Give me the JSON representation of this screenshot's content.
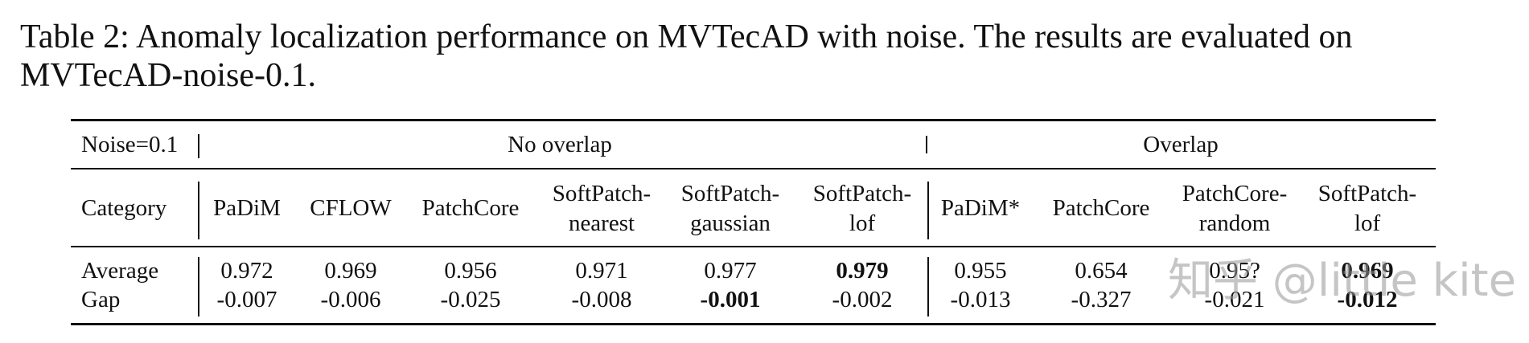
{
  "caption": {
    "line1": "Table 2: Anomaly localization performance on MVTecAD with noise. The results are evaluated on",
    "line2": "MVTecAD-noise-0.1."
  },
  "table": {
    "noise_label": "Noise=0.1",
    "group_no_overlap": "No overlap",
    "group_overlap": "Overlap",
    "category_label": "Category",
    "columns": [
      {
        "line1": "PaDiM",
        "line2": ""
      },
      {
        "line1": "CFLOW",
        "line2": ""
      },
      {
        "line1": "PatchCore",
        "line2": ""
      },
      {
        "line1": "SoftPatch-",
        "line2": "nearest"
      },
      {
        "line1": "SoftPatch-",
        "line2": "gaussian"
      },
      {
        "line1": "SoftPatch-",
        "line2": "lof"
      },
      {
        "line1": "PaDiM*",
        "line2": ""
      },
      {
        "line1": "PatchCore",
        "line2": ""
      },
      {
        "line1": "PatchCore-",
        "line2": "random"
      },
      {
        "line1": "SoftPatch-",
        "line2": "lof"
      }
    ],
    "rows": [
      {
        "label": "Average",
        "values": [
          "0.972",
          "0.969",
          "0.956",
          "0.971",
          "0.977",
          "0.979",
          "0.955",
          "0.654",
          "0.95?",
          "0.969"
        ],
        "bold": [
          false,
          false,
          false,
          false,
          false,
          true,
          false,
          false,
          false,
          true
        ]
      },
      {
        "label": "Gap",
        "values": [
          "-0.007",
          "-0.006",
          "-0.025",
          "-0.008",
          "-0.001",
          "-0.002",
          "-0.013",
          "-0.327",
          "-0.021",
          "-0.012"
        ],
        "bold": [
          false,
          false,
          false,
          false,
          true,
          false,
          false,
          false,
          false,
          true
        ]
      }
    ]
  },
  "watermark": "知乎 @little kite"
}
